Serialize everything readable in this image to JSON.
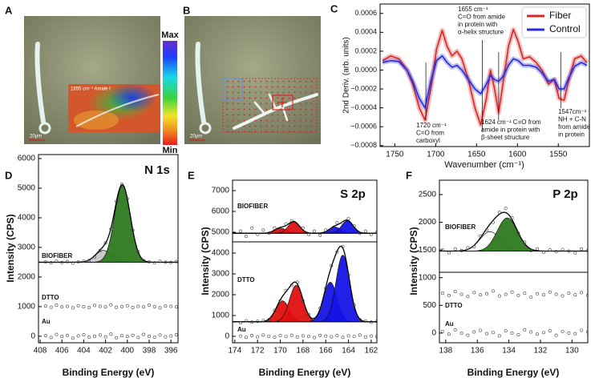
{
  "chart_data": [
    {
      "type": "image",
      "panel": "A",
      "colorbar": {
        "max": "Max",
        "min": "Min"
      },
      "inset_label": "1655 cm⁻¹ Amide I",
      "scale_bar": "20μm"
    },
    {
      "type": "image",
      "panel": "B",
      "scale_bar": "20μm"
    },
    {
      "type": "line",
      "panel": "C",
      "xlabel": "Wavenumber (cm⁻¹)",
      "ylabel": "2nd Deriv. (arb. units)",
      "x": [
        1765,
        1755,
        1745,
        1735,
        1728,
        1720,
        1713,
        1706,
        1699,
        1692,
        1686,
        1680,
        1674,
        1668,
        1660,
        1652,
        1645,
        1638,
        1633,
        1628,
        1623,
        1617,
        1611,
        1605,
        1599,
        1593,
        1585,
        1577,
        1570,
        1562,
        1555,
        1549,
        1543,
        1537,
        1530,
        1522,
        1515
      ],
      "series": [
        {
          "name": "Fiber",
          "color": "#d62728",
          "values": [
            0.0001,
            0.00015,
            0.00012,
            0.0,
            -0.00015,
            -0.0004,
            -0.00053,
            -0.0002,
            0.00022,
            0.00042,
            0.00025,
            0.00015,
            0.0002,
            0.00012,
            -0.0001,
            -0.0004,
            -0.00058,
            -0.0003,
            0.0,
            -0.0002,
            -0.00045,
            -0.0001,
            0.00025,
            0.00043,
            0.0003,
            0.00012,
            0.00014,
            8e-05,
            0.0,
            -0.00015,
            -0.0001,
            -0.0003,
            -0.00032,
            -0.0001,
            0.00012,
            0.00015,
            8e-05
          ]
        },
        {
          "name": "Control",
          "color": "#2a2ad8",
          "values": [
            8e-05,
            0.0001,
            9e-05,
            0.0,
            -0.00012,
            -0.0003,
            -0.0004,
            -0.00012,
            0.0001,
            0.00015,
            8e-05,
            3e-05,
            5e-05,
            0.0,
            -0.0001,
            -0.0002,
            -0.00025,
            -0.00015,
            -6e-05,
            -0.0001,
            -0.00012,
            -6e-05,
            5e-05,
            0.00012,
            0.0001,
            5e-05,
            5e-05,
            3e-05,
            -3e-05,
            -0.00012,
            -0.0001,
            -0.0002,
            -0.0002,
            -8e-05,
            4e-05,
            8e-05,
            5e-05
          ]
        }
      ],
      "xlim": [
        1768,
        1512
      ],
      "ylim": [
        -0.00081,
        0.0007
      ],
      "xticks": [
        1750,
        1700,
        1650,
        1600,
        1550
      ],
      "yticks": [
        {
          "value": 0.0006,
          "label": "0.0006"
        },
        {
          "value": 0.0004,
          "label": "0.0004"
        },
        {
          "value": 0.0002,
          "label": "0.0002"
        },
        {
          "value": 0,
          "label": "0.0000"
        },
        {
          "value": -0.0002,
          "label": "−0.0002"
        },
        {
          "value": -0.0004,
          "label": "−0.0004"
        },
        {
          "value": -0.0006,
          "label": "−0.0006"
        },
        {
          "value": -0.0008,
          "label": "−0.0008"
        }
      ],
      "legend": "upper right",
      "annotations": [
        {
          "x": 1712,
          "lines": [
            "1720 cm⁻¹",
            "C=O from",
            "carboxyl"
          ]
        },
        {
          "x": 1643,
          "lines": [
            "1655 cm⁻¹",
            "C=O from amide",
            "in protein with",
            "α-helix structure"
          ]
        },
        {
          "x": 1623,
          "lines": [
            "1624 cm⁻¹ C=O from",
            "amide in protein with",
            "β-sheet structure"
          ]
        },
        {
          "x": 1547,
          "lines": [
            "1547cm⁻¹",
            "NH + C-N",
            "from amide",
            "in protein"
          ]
        }
      ]
    },
    {
      "type": "scatter",
      "panel": "D",
      "title": "N 1s",
      "xlabel": "Binding Energy (eV)",
      "ylabel": "Intensity (CPS)",
      "x": [
        407.5,
        407,
        406.5,
        406,
        405.5,
        405,
        404.5,
        404,
        403.5,
        403,
        402.5,
        402,
        401.5,
        401,
        400.5,
        400,
        399.5,
        399,
        398.5,
        398,
        397.5,
        397,
        396.5,
        396,
        395.5
      ],
      "xlim": [
        408.15,
        395.35
      ],
      "ylim": [
        -220,
        6135
      ],
      "xticks": [
        408,
        406,
        404,
        402,
        400,
        398,
        396
      ],
      "yticks": [
        0,
        1000,
        2000,
        3000,
        4000,
        5000,
        6000
      ],
      "series": [
        {
          "name": "BIOFIBER",
          "color": "#444444",
          "baseline": 2500,
          "components": [
            {
              "center": 402.2,
              "height": 400,
              "fwhm": 1.7,
              "color": "#c8c8c8"
            },
            {
              "center": 400.45,
              "height": 2600,
              "fwhm": 1.7,
              "color": "#2d7a1f"
            }
          ],
          "values": [
            2510,
            2480,
            2530,
            2490,
            2520,
            2470,
            2510,
            2540,
            2560,
            2680,
            2900,
            3150,
            3620,
            4560,
            5130,
            4650,
            3580,
            2860,
            2560,
            2510,
            2480,
            2530,
            2500,
            2490,
            2520
          ]
        },
        {
          "name": "DTTO",
          "color": "#444444",
          "values": [
            1020,
            980,
            1050,
            990,
            1010,
            960,
            1030,
            1000,
            970,
            1040,
            1010,
            990,
            1060,
            980,
            1000,
            1030,
            970,
            1010,
            990,
            1050,
            1000,
            960,
            1020,
            1010,
            990
          ]
        },
        {
          "name": "Au",
          "color": "#444444",
          "values": [
            20,
            -40,
            60,
            -10,
            30,
            -60,
            10,
            50,
            -30,
            0,
            40,
            -20,
            70,
            -50,
            20,
            -10,
            30,
            -40,
            60,
            0,
            -30,
            40,
            -20,
            10,
            50
          ]
        }
      ]
    },
    {
      "type": "scatter",
      "panel": "E",
      "title": "S 2p",
      "xlabel": "Binding Energy (eV)",
      "ylabel": "Intensity (CPS)",
      "x": [
        173.5,
        173,
        172.5,
        172,
        171.5,
        171,
        170.5,
        170,
        169.5,
        169,
        168.5,
        168,
        167.5,
        167,
        166.5,
        166,
        165.5,
        165,
        164.5,
        164,
        163.5,
        163,
        162.5,
        162,
        161.5
      ],
      "xlim": [
        174.2,
        161.5
      ],
      "ylim": [
        -310,
        7500
      ],
      "xticks": [
        174,
        172,
        170,
        168,
        166,
        164,
        162
      ],
      "yticks": [
        0,
        1000,
        2000,
        3000,
        4000,
        5000,
        6000,
        7000
      ],
      "series": [
        {
          "name": "BIOFIBER",
          "color": "#444444",
          "baseline": 4950,
          "components": [
            {
              "center": 170,
              "height": 250,
              "fwhm": 1.2,
              "color": "#e01010"
            },
            {
              "center": 168.8,
              "height": 550,
              "fwhm": 1.2,
              "color": "#e01010"
            },
            {
              "center": 165.2,
              "height": 300,
              "fwhm": 1.2,
              "color": "#1414e6"
            },
            {
              "center": 164.1,
              "height": 600,
              "fwhm": 1.2,
              "color": "#1414e6"
            }
          ],
          "values": [
            5050,
            4800,
            5200,
            4900,
            5100,
            4950,
            5200,
            5150,
            5400,
            5550,
            5350,
            5200,
            4900,
            5050,
            4850,
            5100,
            5150,
            5450,
            5450,
            5650,
            5300,
            4950,
            5050,
            4900,
            5000
          ]
        },
        {
          "name": "DTTO",
          "color": "#444444",
          "baseline": 700,
          "components": [
            {
              "center": 169.8,
              "height": 1000,
              "fwhm": 1.4,
              "color": "#e01010"
            },
            {
              "center": 168.6,
              "height": 1750,
              "fwhm": 1.4,
              "color": "#e01010"
            },
            {
              "center": 165.6,
              "height": 1900,
              "fwhm": 1.4,
              "color": "#1414e6"
            },
            {
              "center": 164.5,
              "height": 3200,
              "fwhm": 1.4,
              "color": "#1414e6"
            }
          ],
          "values": [
            650,
            750,
            680,
            720,
            760,
            800,
            1250,
            1700,
            2200,
            2450,
            2600,
            1700,
            1050,
            830,
            1350,
            2300,
            3400,
            4050,
            4300,
            2950,
            1500,
            800,
            740,
            680,
            720
          ]
        },
        {
          "name": "Au",
          "color": "#444444",
          "values": [
            10,
            -50,
            40,
            -20,
            60,
            0,
            -40,
            30,
            -10,
            50,
            -30,
            20,
            0,
            -60,
            40,
            10,
            -20,
            30,
            -50,
            20,
            0,
            60,
            -30,
            10,
            -10
          ]
        }
      ]
    },
    {
      "type": "scatter",
      "panel": "F",
      "title": "P 2p",
      "xlabel": "Binding Energy (eV)",
      "ylabel": "Intensity (CPS)",
      "x": [
        138.2,
        137.8,
        137.4,
        137,
        136.6,
        136.2,
        135.8,
        135.4,
        135,
        134.6,
        134.2,
        133.8,
        133.4,
        133,
        132.6,
        132.2,
        131.8,
        131.4,
        131,
        130.6,
        130.2,
        129.8,
        129.4,
        129
      ],
      "xlim": [
        138.4,
        129.0
      ],
      "ylim": [
        -175,
        2760
      ],
      "xticks": [
        138,
        136,
        134,
        132,
        130
      ],
      "yticks": [
        0,
        500,
        1000,
        1500,
        2000,
        2500
      ],
      "series": [
        {
          "name": "BIOFIBER",
          "color": "#444444",
          "baseline": 1480,
          "components": [
            {
              "center": 135.2,
              "height": 350,
              "fwhm": 1.5,
              "color": "none"
            },
            {
              "center": 134.1,
              "height": 600,
              "fwhm": 1.5,
              "color": "#2d7a1f"
            }
          ],
          "values": [
            1500,
            1450,
            1520,
            1490,
            1540,
            1560,
            1750,
            1860,
            2000,
            2180,
            2250,
            2080,
            1800,
            1640,
            1490,
            1520,
            1460,
            1500,
            1470,
            1510,
            1480,
            1450,
            1520,
            1490
          ]
        },
        {
          "name": "DTTO",
          "color": "#444444",
          "values": [
            720,
            680,
            750,
            700,
            660,
            730,
            690,
            710,
            760,
            670,
            700,
            740,
            680,
            720,
            650,
            710,
            690,
            740,
            700,
            670,
            720,
            690,
            730,
            680
          ]
        },
        {
          "name": "Au",
          "color": "#444444",
          "values": [
            30,
            -20,
            60,
            0,
            -40,
            20,
            50,
            -10,
            10,
            -50,
            40,
            0,
            -30,
            60,
            20,
            -20,
            10,
            40,
            -40,
            30,
            0,
            -10,
            50,
            20
          ]
        }
      ]
    }
  ]
}
